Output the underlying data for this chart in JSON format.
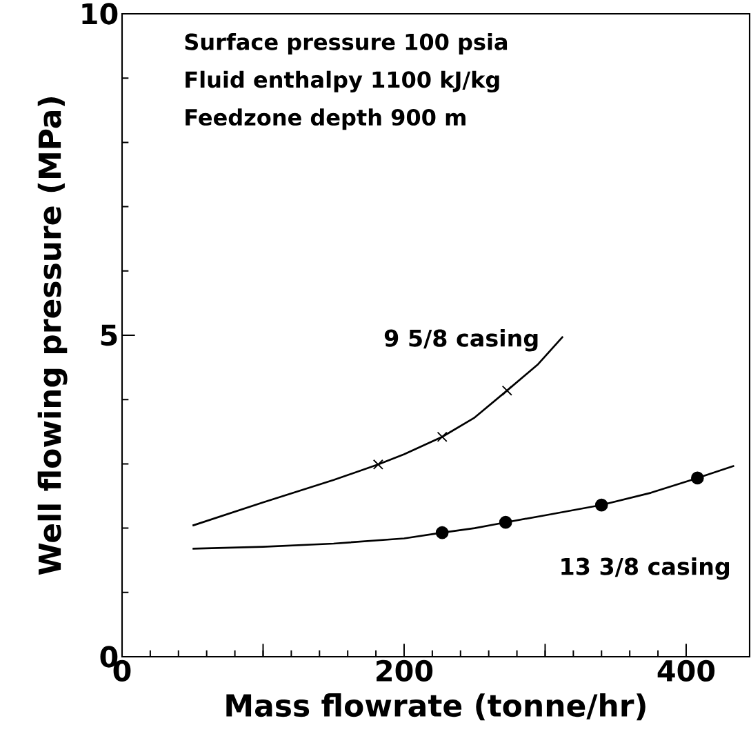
{
  "chart_data": {
    "type": "line",
    "xlabel": "Mass flowrate (tonne/hr)",
    "ylabel": "Well flowing pressure (MPa)",
    "annotations": [
      "Surface pressure 100 psia",
      "Fluid enthalpy 1100 kJ/kg",
      "Feedzone depth 900 m"
    ],
    "xlim": [
      0,
      445
    ],
    "ylim": [
      0,
      10
    ],
    "xticks": [
      0,
      {
        "value": 100,
        "label": null
      },
      200,
      {
        "value": 300,
        "label": null
      },
      400
    ],
    "yticks": [
      0,
      5,
      10
    ],
    "grid": false,
    "legend": false,
    "line_style": "solid",
    "series": [
      {
        "name": "9 5/8 casing",
        "type": "line",
        "marker": "none",
        "color": "#000000",
        "x": [
          50,
          100,
          150,
          181.6,
          200,
          227,
          250,
          273,
          295,
          312.6
        ],
        "values": [
          2.04,
          2.4,
          2.75,
          2.99,
          3.15,
          3.42,
          3.72,
          4.14,
          4.55,
          4.98
        ]
      },
      {
        "name": "13 3/8 casing",
        "type": "line",
        "marker": "none",
        "color": "#000000",
        "x": [
          50,
          100,
          150,
          200,
          227,
          250,
          272,
          300,
          340,
          375,
          408,
          434
        ],
        "values": [
          1.68,
          1.71,
          1.76,
          1.84,
          1.93,
          2.0,
          2.09,
          2.2,
          2.36,
          2.55,
          2.78,
          2.97
        ]
      },
      {
        "type": "scatter",
        "marker": "cross",
        "color": "#000000",
        "x": [
          181.6,
          227,
          273
        ],
        "values": [
          2.99,
          3.42,
          4.14
        ]
      },
      {
        "type": "scatter",
        "marker": "circle",
        "color": "#000000",
        "x": [
          227,
          272,
          340,
          408
        ],
        "values": [
          1.93,
          2.09,
          2.36,
          2.78
        ]
      }
    ]
  }
}
